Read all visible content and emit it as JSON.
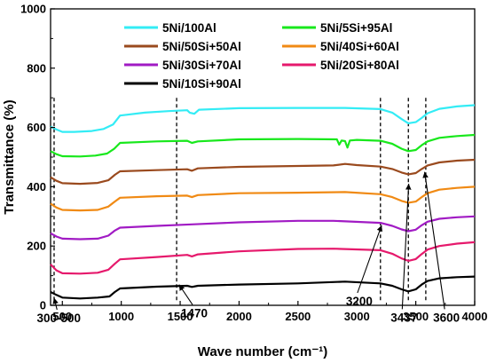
{
  "chart_data": {
    "type": "line",
    "title": "",
    "xlabel": "Wave number (cm⁻¹)",
    "ylabel": "Transmittance (%)",
    "xlim": [
      400,
      4000
    ],
    "ylim": [
      0,
      1000
    ],
    "xticks": [
      500,
      1000,
      1500,
      2000,
      2500,
      3000,
      3500,
      4000
    ],
    "yticks": [
      0,
      200,
      400,
      600,
      800,
      1000
    ],
    "grid": false,
    "legend": {
      "position": "top-center",
      "columns": 2,
      "order": [
        "5Ni/100Al",
        "5Ni/5Si+95Al",
        "5Ni/50Si+50Al",
        "5Ni/40Si+60Al",
        "5Ni/30Si+70Al",
        "5Ni/20Si+80Al",
        "5Ni/10Si+90Al"
      ]
    },
    "series": [
      {
        "name": "5Ni/100Al",
        "color": "#33ecf5",
        "points": [
          [
            400,
            603
          ],
          [
            450,
            593
          ],
          [
            500,
            585
          ],
          [
            600,
            585
          ],
          [
            750,
            588
          ],
          [
            850,
            595
          ],
          [
            930,
            610
          ],
          [
            990,
            640
          ],
          [
            1200,
            650
          ],
          [
            1400,
            655
          ],
          [
            1560,
            658
          ],
          [
            1580,
            650
          ],
          [
            1620,
            646
          ],
          [
            1660,
            660
          ],
          [
            2000,
            665
          ],
          [
            2500,
            666
          ],
          [
            2900,
            666
          ],
          [
            3200,
            662
          ],
          [
            3300,
            650
          ],
          [
            3380,
            628
          ],
          [
            3437,
            614
          ],
          [
            3500,
            618
          ],
          [
            3550,
            632
          ],
          [
            3600,
            648
          ],
          [
            3700,
            663
          ],
          [
            3850,
            671
          ],
          [
            4000,
            675
          ]
        ]
      },
      {
        "name": "5Ni/5Si+95Al",
        "color": "#18e81c",
        "points": [
          [
            400,
            520
          ],
          [
            450,
            510
          ],
          [
            500,
            503
          ],
          [
            650,
            502
          ],
          [
            780,
            505
          ],
          [
            880,
            512
          ],
          [
            940,
            528
          ],
          [
            990,
            548
          ],
          [
            1300,
            553
          ],
          [
            1560,
            555
          ],
          [
            1600,
            548
          ],
          [
            1650,
            553
          ],
          [
            2000,
            560
          ],
          [
            2500,
            561
          ],
          [
            2830,
            560
          ],
          [
            2850,
            542
          ],
          [
            2870,
            556
          ],
          [
            2900,
            554
          ],
          [
            2920,
            532
          ],
          [
            2940,
            556
          ],
          [
            3000,
            558
          ],
          [
            3200,
            555
          ],
          [
            3300,
            545
          ],
          [
            3380,
            528
          ],
          [
            3437,
            520
          ],
          [
            3500,
            524
          ],
          [
            3550,
            540
          ],
          [
            3600,
            553
          ],
          [
            3700,
            565
          ],
          [
            3850,
            571
          ],
          [
            4000,
            575
          ]
        ]
      },
      {
        "name": "5Ni/50Si+50Al",
        "color": "#9a4a1e",
        "points": [
          [
            400,
            432
          ],
          [
            450,
            420
          ],
          [
            500,
            412
          ],
          [
            650,
            410
          ],
          [
            800,
            413
          ],
          [
            890,
            422
          ],
          [
            945,
            440
          ],
          [
            990,
            452
          ],
          [
            1300,
            456
          ],
          [
            1560,
            459
          ],
          [
            1600,
            454
          ],
          [
            1650,
            462
          ],
          [
            2000,
            467
          ],
          [
            2500,
            470
          ],
          [
            2800,
            472
          ],
          [
            2900,
            477
          ],
          [
            3000,
            473
          ],
          [
            3200,
            468
          ],
          [
            3300,
            460
          ],
          [
            3380,
            448
          ],
          [
            3437,
            442
          ],
          [
            3500,
            446
          ],
          [
            3550,
            460
          ],
          [
            3600,
            472
          ],
          [
            3700,
            482
          ],
          [
            3850,
            488
          ],
          [
            4000,
            491
          ]
        ]
      },
      {
        "name": "5Ni/40Si+60Al",
        "color": "#f08a14",
        "points": [
          [
            400,
            343
          ],
          [
            450,
            330
          ],
          [
            500,
            322
          ],
          [
            650,
            320
          ],
          [
            800,
            322
          ],
          [
            890,
            333
          ],
          [
            945,
            350
          ],
          [
            990,
            363
          ],
          [
            1300,
            368
          ],
          [
            1560,
            370
          ],
          [
            1600,
            365
          ],
          [
            1650,
            372
          ],
          [
            2000,
            378
          ],
          [
            2500,
            380
          ],
          [
            2900,
            382
          ],
          [
            3200,
            375
          ],
          [
            3300,
            365
          ],
          [
            3380,
            352
          ],
          [
            3437,
            346
          ],
          [
            3500,
            350
          ],
          [
            3550,
            365
          ],
          [
            3600,
            378
          ],
          [
            3700,
            390
          ],
          [
            3850,
            396
          ],
          [
            4000,
            400
          ]
        ]
      },
      {
        "name": "5Ni/30Si+70Al",
        "color": "#a11bc4",
        "points": [
          [
            400,
            243
          ],
          [
            450,
            232
          ],
          [
            500,
            225
          ],
          [
            650,
            223
          ],
          [
            800,
            225
          ],
          [
            890,
            235
          ],
          [
            945,
            252
          ],
          [
            990,
            262
          ],
          [
            1300,
            268
          ],
          [
            1600,
            273
          ],
          [
            2000,
            280
          ],
          [
            2500,
            285
          ],
          [
            2800,
            285
          ],
          [
            3200,
            278
          ],
          [
            3300,
            268
          ],
          [
            3380,
            256
          ],
          [
            3437,
            250
          ],
          [
            3500,
            255
          ],
          [
            3550,
            270
          ],
          [
            3600,
            282
          ],
          [
            3700,
            292
          ],
          [
            3850,
            297
          ],
          [
            4000,
            300
          ]
        ]
      },
      {
        "name": "5Ni/20Si+80Al",
        "color": "#e6196c",
        "points": [
          [
            400,
            138
          ],
          [
            450,
            118
          ],
          [
            500,
            108
          ],
          [
            650,
            107
          ],
          [
            800,
            110
          ],
          [
            890,
            120
          ],
          [
            945,
            140
          ],
          [
            990,
            155
          ],
          [
            1300,
            163
          ],
          [
            1560,
            170
          ],
          [
            1600,
            165
          ],
          [
            1650,
            172
          ],
          [
            2000,
            182
          ],
          [
            2500,
            190
          ],
          [
            2800,
            191
          ],
          [
            3200,
            186
          ],
          [
            3300,
            174
          ],
          [
            3380,
            158
          ],
          [
            3437,
            150
          ],
          [
            3500,
            156
          ],
          [
            3550,
            173
          ],
          [
            3600,
            188
          ],
          [
            3700,
            200
          ],
          [
            3850,
            208
          ],
          [
            4000,
            213
          ]
        ]
      },
      {
        "name": "5Ni/10Si+90Al",
        "color": "#000000",
        "points": [
          [
            400,
            45
          ],
          [
            450,
            35
          ],
          [
            500,
            26
          ],
          [
            650,
            23
          ],
          [
            800,
            26
          ],
          [
            900,
            30
          ],
          [
            945,
            45
          ],
          [
            990,
            57
          ],
          [
            1300,
            63
          ],
          [
            1560,
            66
          ],
          [
            1600,
            62
          ],
          [
            1650,
            66
          ],
          [
            2000,
            70
          ],
          [
            2500,
            74
          ],
          [
            2900,
            80
          ],
          [
            3200,
            74
          ],
          [
            3300,
            66
          ],
          [
            3380,
            54
          ],
          [
            3437,
            47
          ],
          [
            3500,
            54
          ],
          [
            3550,
            70
          ],
          [
            3600,
            82
          ],
          [
            3700,
            91
          ],
          [
            3850,
            95
          ],
          [
            4000,
            97
          ]
        ]
      }
    ],
    "annotations": [
      {
        "label": "300-500",
        "line_x": 430,
        "arrow_to": [
          430,
          25
        ],
        "text_at": [
          470,
          -57
        ]
      },
      {
        "label": "1470",
        "line_x": 1470,
        "arrow_to": [
          1490,
          70
        ],
        "text_at": [
          1620,
          -40
        ]
      },
      {
        "label": "3200",
        "line_x": 3200,
        "arrow_to": [
          3210,
          270
        ],
        "text_at": [
          3020,
          0
        ]
      },
      {
        "label": "3437",
        "line_x": 3437,
        "arrow_to": [
          3440,
          410
        ],
        "text_at": [
          3400,
          -55
        ]
      },
      {
        "label": "3600",
        "line_x": 3585,
        "arrow_to": [
          3575,
          450
        ],
        "text_at": [
          3760,
          -55
        ]
      }
    ]
  }
}
